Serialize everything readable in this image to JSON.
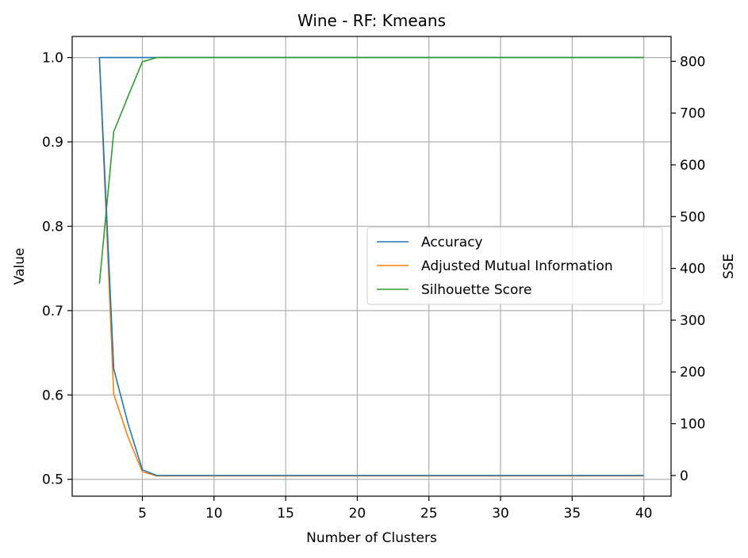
{
  "chart_data": {
    "type": "line",
    "title": "Wine - RF: Kmeans",
    "xlabel": "Number of Clusters",
    "ylabel": "Value",
    "ylabel_right": "SSE",
    "xlim": [
      0.1,
      41.9
    ],
    "ylim": [
      0.48,
      1.025
    ],
    "ylim_right": [
      -40,
      848
    ],
    "x_ticks": [
      5,
      10,
      15,
      20,
      25,
      30,
      35,
      40
    ],
    "y_ticks": [
      0.5,
      0.6,
      0.7,
      0.8,
      0.9,
      1.0
    ],
    "y_tick_labels": [
      "0.5",
      "0.6",
      "0.7",
      "0.8",
      "0.9",
      "1.0"
    ],
    "y_right_ticks": [
      0,
      100,
      200,
      300,
      400,
      500,
      600,
      700,
      800
    ],
    "grid": true,
    "legend": {
      "placement": "center-right",
      "entries": [
        "Accuracy",
        "Adjusted Mutual Information",
        "Silhouette Score"
      ]
    },
    "colors": {
      "accuracy": "#1f77b4",
      "ami": "#ff7f0e",
      "silhouette": "#2ca02c",
      "sse": "#1f77b4"
    },
    "x": [
      2,
      3,
      4,
      5,
      6,
      7,
      8,
      9,
      10,
      11,
      12,
      13,
      14,
      15,
      16,
      17,
      18,
      19,
      20,
      21,
      22,
      23,
      24,
      25,
      26,
      27,
      28,
      29,
      30,
      31,
      32,
      33,
      34,
      35,
      36,
      37,
      38,
      39,
      40
    ],
    "series": [
      {
        "name": "Accuracy",
        "axis": "left",
        "color": "#1f77b4",
        "values": [
          1.0,
          1.0,
          1.0,
          1.0,
          1.0,
          1.0,
          1.0,
          1.0,
          1.0,
          1.0,
          1.0,
          1.0,
          1.0,
          1.0,
          1.0,
          1.0,
          1.0,
          1.0,
          1.0,
          1.0,
          1.0,
          1.0,
          1.0,
          1.0,
          1.0,
          1.0,
          1.0,
          1.0,
          1.0,
          1.0,
          1.0,
          1.0,
          1.0,
          1.0,
          1.0,
          1.0,
          1.0,
          1.0,
          1.0
        ]
      },
      {
        "name": "Adjusted Mutual Information",
        "axis": "left",
        "color": "#ff7f0e",
        "values": [
          1.0,
          0.601,
          0.55,
          0.509,
          0.504,
          0.504,
          0.504,
          0.504,
          0.504,
          0.504,
          0.504,
          0.504,
          0.504,
          0.504,
          0.504,
          0.504,
          0.504,
          0.504,
          0.504,
          0.504,
          0.504,
          0.504,
          0.504,
          0.504,
          0.504,
          0.504,
          0.504,
          0.504,
          0.504,
          0.504,
          0.504,
          0.504,
          0.504,
          0.504,
          0.504,
          0.504,
          0.504,
          0.504,
          0.504
        ]
      },
      {
        "name": "Silhouette Score",
        "axis": "left",
        "color": "#2ca02c",
        "values": [
          0.732,
          0.912,
          0.954,
          0.995,
          1.0,
          1.0,
          1.0,
          1.0,
          1.0,
          1.0,
          1.0,
          1.0,
          1.0,
          1.0,
          1.0,
          1.0,
          1.0,
          1.0,
          1.0,
          1.0,
          1.0,
          1.0,
          1.0,
          1.0,
          1.0,
          1.0,
          1.0,
          1.0,
          1.0,
          1.0,
          1.0,
          1.0,
          1.0,
          1.0,
          1.0,
          1.0,
          1.0,
          1.0,
          1.0
        ]
      },
      {
        "name": "",
        "axis": "right",
        "color": "#1f77b4",
        "values": [
          808,
          206,
          100,
          11,
          0,
          0,
          0,
          0,
          0,
          0,
          0,
          0,
          0,
          0,
          0,
          0,
          0,
          0,
          0,
          0,
          0,
          0,
          0,
          0,
          0,
          0,
          0,
          0,
          0,
          0,
          0,
          0,
          0,
          0,
          0,
          0,
          0,
          0,
          0
        ]
      }
    ]
  }
}
